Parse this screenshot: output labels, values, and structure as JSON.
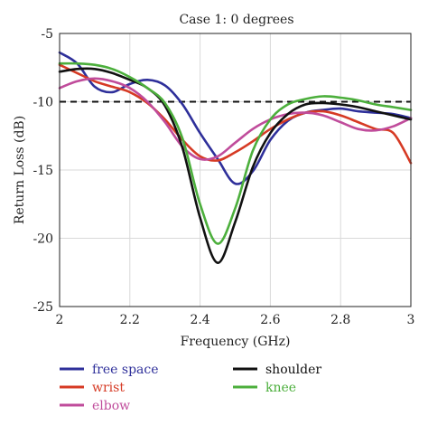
{
  "chart_data": {
    "type": "line",
    "title": "Case 1: 0 degrees",
    "xlabel": "Frequency (GHz)",
    "ylabel": "Return Loss (dB)",
    "xlim": [
      2,
      3
    ],
    "ylim": [
      -25,
      -5
    ],
    "xticks": [
      2,
      2.2,
      2.4,
      2.6,
      2.8,
      3
    ],
    "xtick_labels": [
      "2",
      "2.2",
      "2.4",
      "2.6",
      "2.8",
      "3"
    ],
    "yticks": [
      -5,
      -10,
      -15,
      -20,
      -25
    ],
    "ytick_labels": [
      "-5",
      "-10",
      "-15",
      "-20",
      "-25"
    ],
    "grid": true,
    "legend_position": "below",
    "reference_line": {
      "y": -10,
      "style": "dashed",
      "color": "#111111"
    },
    "series": [
      {
        "name": "free space",
        "color": "#2e2f9a",
        "x": [
          2.0,
          2.05,
          2.1,
          2.15,
          2.2,
          2.25,
          2.3,
          2.35,
          2.4,
          2.45,
          2.5,
          2.55,
          2.6,
          2.65,
          2.7,
          2.75,
          2.8,
          2.85,
          2.9,
          2.95,
          3.0
        ],
        "y": [
          -6.4,
          -7.2,
          -8.9,
          -9.3,
          -8.7,
          -8.4,
          -8.8,
          -10.2,
          -12.3,
          -14.2,
          -16.0,
          -15.1,
          -12.8,
          -11.4,
          -10.8,
          -10.6,
          -10.5,
          -10.7,
          -10.8,
          -10.9,
          -11.2
        ]
      },
      {
        "name": "wrist",
        "color": "#d63a24",
        "x": [
          2.0,
          2.05,
          2.1,
          2.15,
          2.2,
          2.25,
          2.3,
          2.35,
          2.4,
          2.45,
          2.5,
          2.55,
          2.6,
          2.65,
          2.7,
          2.75,
          2.8,
          2.85,
          2.9,
          2.95,
          3.0
        ],
        "y": [
          -7.3,
          -7.9,
          -8.5,
          -8.9,
          -9.3,
          -10.1,
          -11.3,
          -12.8,
          -14.0,
          -14.3,
          -13.7,
          -12.9,
          -12.0,
          -11.3,
          -10.8,
          -10.7,
          -11.0,
          -11.5,
          -12.0,
          -12.3,
          -14.5
        ]
      },
      {
        "name": "elbow",
        "color": "#c04c9b",
        "x": [
          2.0,
          2.05,
          2.1,
          2.15,
          2.2,
          2.25,
          2.3,
          2.35,
          2.4,
          2.45,
          2.5,
          2.55,
          2.6,
          2.65,
          2.7,
          2.75,
          2.8,
          2.85,
          2.9,
          2.95,
          3.0
        ],
        "y": [
          -9.0,
          -8.5,
          -8.3,
          -8.5,
          -9.0,
          -10.0,
          -11.5,
          -13.3,
          -14.2,
          -14.0,
          -13.0,
          -12.0,
          -11.3,
          -10.9,
          -10.8,
          -11.0,
          -11.5,
          -12.0,
          -12.1,
          -11.8,
          -11.2
        ]
      },
      {
        "name": "shoulder",
        "color": "#111111",
        "x": [
          2.0,
          2.05,
          2.1,
          2.15,
          2.2,
          2.25,
          2.3,
          2.35,
          2.4,
          2.45,
          2.5,
          2.55,
          2.6,
          2.65,
          2.7,
          2.75,
          2.8,
          2.85,
          2.9,
          2.95,
          3.0
        ],
        "y": [
          -7.8,
          -7.6,
          -7.6,
          -7.9,
          -8.4,
          -9.0,
          -10.3,
          -13.4,
          -18.5,
          -21.8,
          -18.8,
          -14.8,
          -12.3,
          -10.9,
          -10.2,
          -10.1,
          -10.2,
          -10.4,
          -10.7,
          -11.0,
          -11.3
        ]
      },
      {
        "name": "knee",
        "color": "#4caf3c",
        "x": [
          2.0,
          2.05,
          2.1,
          2.15,
          2.2,
          2.25,
          2.3,
          2.35,
          2.4,
          2.45,
          2.5,
          2.55,
          2.6,
          2.65,
          2.7,
          2.75,
          2.8,
          2.85,
          2.9,
          2.95,
          3.0
        ],
        "y": [
          -7.2,
          -7.2,
          -7.3,
          -7.6,
          -8.2,
          -9.0,
          -10.1,
          -12.7,
          -17.5,
          -20.4,
          -17.8,
          -13.6,
          -11.3,
          -10.2,
          -9.8,
          -9.6,
          -9.7,
          -9.9,
          -10.2,
          -10.4,
          -10.6
        ]
      }
    ]
  }
}
